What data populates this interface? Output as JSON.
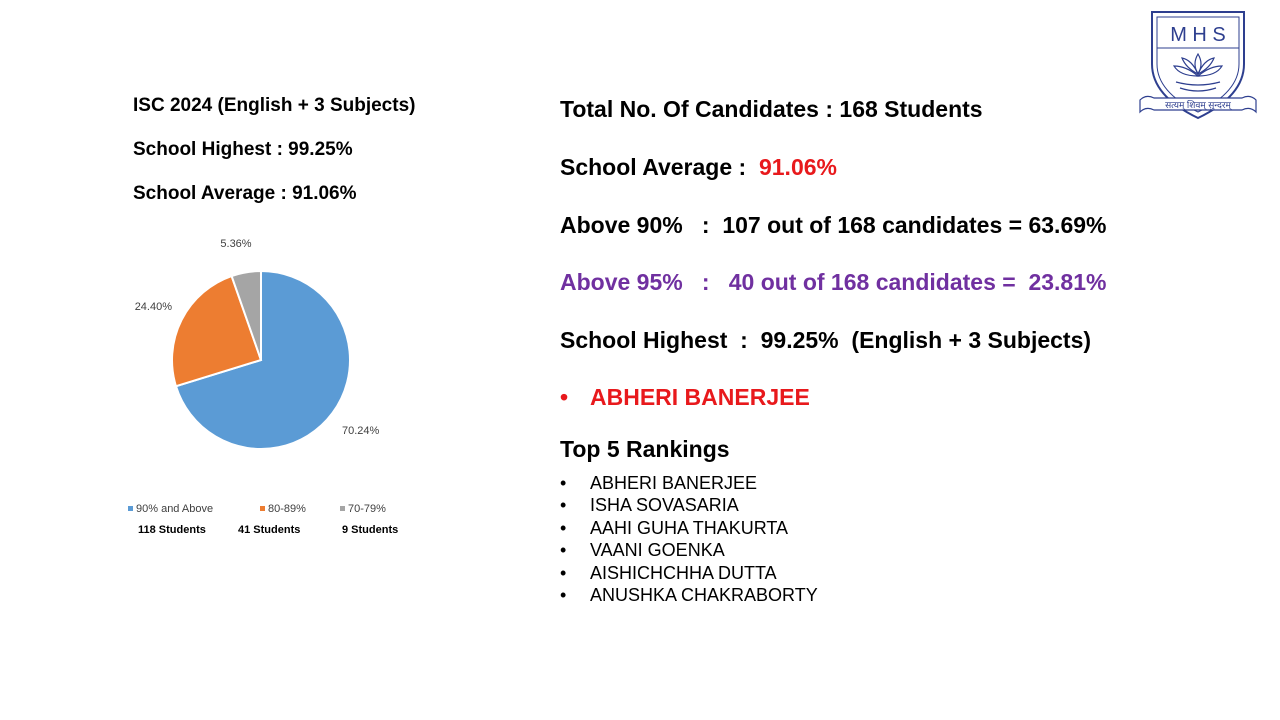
{
  "left": {
    "exam_title": "ISC 2024 (English + 3 Subjects)",
    "school_highest": "School Highest  :  99.25%",
    "school_average": "School Average  :  91.06%"
  },
  "chart_data": {
    "type": "pie",
    "title": "",
    "slices": [
      {
        "label": "90% and Above",
        "value": 70.24,
        "value_label": "70.24%",
        "count_label": "118 Students",
        "color": "#5b9bd5"
      },
      {
        "label": "80-89%",
        "value": 24.4,
        "value_label": "24.40%",
        "count_label": "41 Students",
        "color": "#ed7d31"
      },
      {
        "label": "70-79%",
        "value": 5.36,
        "value_label": "5.36%",
        "count_label": "9 Students",
        "color": "#a5a5a5"
      }
    ],
    "legend_position": "bottom"
  },
  "stats": {
    "total_candidates": "Total No. Of Candidates  :  168  Students",
    "average_label": "School Average :  ",
    "average_value": "91.06%",
    "above_90": "Above 90%   :  107 out of 168 candidates = 63.69%",
    "above_95": "Above 95%   :   40 out of 168 candidates =  23.81%",
    "highest": "School Highest  :  99.25%  (English + 3 Subjects)",
    "topper_bullet": "•",
    "topper": "ABHERI BANERJEE"
  },
  "rankings": {
    "title": "Top 5 Rankings",
    "bullet": "•",
    "items": [
      "ABHERI BANERJEE",
      "ISHA SOVASARIA",
      "AAHI GUHA THAKURTA",
      "VAANI GOENKA",
      "AISHICHCHHA DUTTA",
      "ANUSHKA CHAKRABORTY"
    ]
  },
  "logo": {
    "letters": "M H S",
    "motto": "सत्यम् शिवम् सुन्दरम्"
  },
  "colors": {
    "logo_blue": "#2e3f8f",
    "red": "#e8191c",
    "purple": "#7030a0"
  }
}
